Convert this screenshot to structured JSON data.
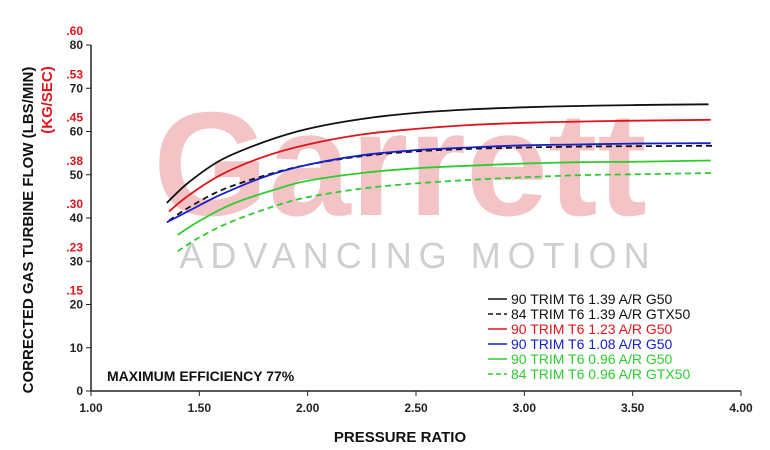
{
  "chart_data": {
    "type": "line",
    "xlabel": "PRESSURE RATIO",
    "ylabel_primary": "CORRECTED GAS TURBINE FLOW (LBS/MIN)",
    "ylabel_secondary": "(KG/SEC)",
    "xlim": [
      1.0,
      4.0
    ],
    "ylim": [
      0,
      80
    ],
    "x_ticks": [
      "1.00",
      "1.50",
      "2.00",
      "2.50",
      "3.00",
      "3.50",
      "4.00"
    ],
    "y_ticks_primary": [
      "0",
      "10",
      "20",
      "30",
      "40",
      "50",
      "60",
      "70",
      "80"
    ],
    "y_ticks_secondary": [
      ".15",
      ".23",
      ".30",
      ".38",
      ".45",
      ".53",
      ".60"
    ],
    "grid": false,
    "legend_position": "bottom-right",
    "annotation": "MAXIMUM EFFICIENCY 77%",
    "watermark": {
      "logo": "Garrett",
      "tagline": "ADVANCING MOTION"
    },
    "series": [
      {
        "name": "90 TRIM T6 1.39 A/R G50",
        "color": "#111111",
        "dashed": false,
        "x": [
          1.35,
          1.45,
          1.6,
          1.8,
          2.0,
          2.25,
          2.5,
          2.75,
          3.0,
          3.25,
          3.5,
          3.85
        ],
        "y": [
          43.5,
          48.2,
          53.4,
          57.6,
          60.6,
          62.9,
          64.3,
          65.1,
          65.6,
          65.9,
          66.1,
          66.3
        ]
      },
      {
        "name": "84 TRIM T6 1.39 A/R GTX50",
        "color": "#111111",
        "dashed": true,
        "x": [
          1.36,
          1.45,
          1.6,
          1.8,
          2.0,
          2.25,
          2.5,
          2.75,
          3.0,
          3.25,
          3.5,
          3.87
        ],
        "y": [
          39.4,
          42.4,
          46.4,
          49.8,
          52.3,
          54.3,
          55.4,
          56.0,
          56.3,
          56.5,
          56.6,
          56.7
        ]
      },
      {
        "name": "90 TRIM T6 1.23 A/R G50",
        "color": "#e0151b",
        "dashed": false,
        "x": [
          1.36,
          1.45,
          1.6,
          1.8,
          2.0,
          2.25,
          2.5,
          2.75,
          3.0,
          3.25,
          3.5,
          3.86
        ],
        "y": [
          41.5,
          45.2,
          50.0,
          54.2,
          57.0,
          59.3,
          60.6,
          61.5,
          62.0,
          62.3,
          62.5,
          62.7
        ]
      },
      {
        "name": "90 TRIM T6 1.08 A/R G50",
        "color": "#1520c8",
        "dashed": false,
        "x": [
          1.35,
          1.45,
          1.6,
          1.8,
          2.0,
          2.25,
          2.5,
          2.75,
          3.0,
          3.25,
          3.5,
          3.86
        ],
        "y": [
          39.0,
          41.6,
          45.4,
          49.5,
          52.3,
          54.5,
          55.7,
          56.3,
          56.8,
          57.0,
          57.2,
          57.3
        ]
      },
      {
        "name": "90 TRIM T6 0.96 A/R G50",
        "color": "#2ecc2e",
        "dashed": false,
        "x": [
          1.4,
          1.5,
          1.65,
          1.85,
          2.0,
          2.25,
          2.5,
          2.75,
          3.0,
          3.25,
          3.5,
          3.86
        ],
        "y": [
          36.1,
          39.3,
          43.2,
          46.6,
          48.6,
          50.4,
          51.5,
          52.1,
          52.6,
          52.9,
          53.0,
          53.3
        ]
      },
      {
        "name": "84 TRIM T6 0.96 A/R GTX50",
        "color": "#2ecc2e",
        "dashed": true,
        "x": [
          1.4,
          1.5,
          1.65,
          1.85,
          2.0,
          2.25,
          2.5,
          2.75,
          3.0,
          3.25,
          3.5,
          3.87
        ],
        "y": [
          32.3,
          35.5,
          39.2,
          42.8,
          44.8,
          46.8,
          48.0,
          48.8,
          49.4,
          49.9,
          50.1,
          50.4
        ]
      }
    ]
  }
}
